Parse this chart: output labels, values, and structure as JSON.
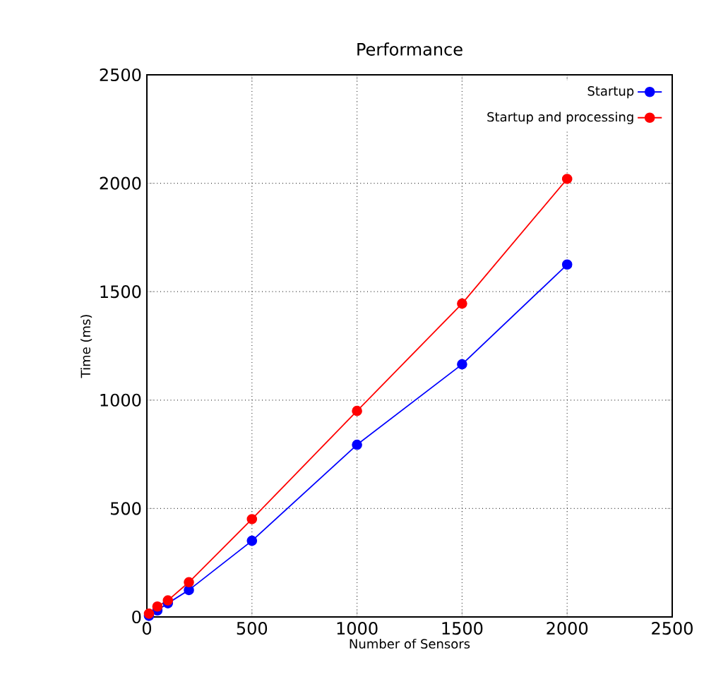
{
  "chart_data": {
    "type": "line",
    "title": "Performance",
    "xlabel": "Number of Sensors",
    "ylabel": "Time  (ms)",
    "x": [
      10,
      50,
      100,
      200,
      500,
      1000,
      1500,
      2000
    ],
    "series": [
      {
        "name": "Startup",
        "color": "#0000ff",
        "values": [
          5,
          30,
          63,
          124,
          351,
          794,
          1165,
          1625
        ]
      },
      {
        "name": "Startup and processing",
        "color": "#ff0000",
        "values": [
          15,
          48,
          76,
          160,
          451,
          950,
          1445,
          2020
        ]
      }
    ],
    "xlim": [
      0,
      2500
    ],
    "ylim": [
      0,
      2500
    ],
    "xticks": [
      0,
      500,
      1000,
      1500,
      2000,
      2500
    ],
    "yticks": [
      0,
      500,
      1000,
      1500,
      2000,
      2500
    ],
    "grid": true,
    "legend": "top right",
    "marker": "circle",
    "line_style": "solid"
  }
}
